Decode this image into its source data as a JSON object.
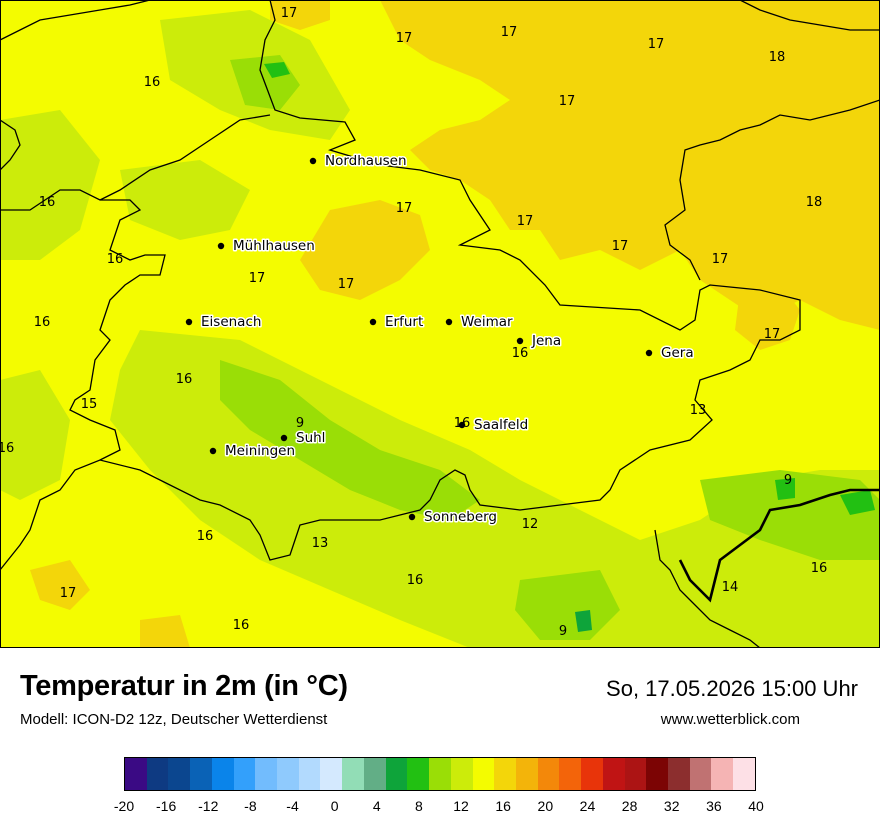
{
  "map": {
    "cities": [
      {
        "name": "Nordhausen"
      },
      {
        "name": "Mühlhausen"
      },
      {
        "name": "Eisenach"
      },
      {
        "name": "Erfurt"
      },
      {
        "name": "Weimar"
      },
      {
        "name": "Jena"
      },
      {
        "name": "Gera"
      },
      {
        "name": "Suhl"
      },
      {
        "name": "Meiningen"
      },
      {
        "name": "Saalfeld"
      },
      {
        "name": "Sonneberg"
      }
    ],
    "temperature_labels": [
      "17",
      "17",
      "17",
      "17",
      "18",
      "16",
      "17",
      "17",
      "17",
      "16",
      "18",
      "16",
      "17",
      "17",
      "17",
      "17",
      "16",
      "17",
      "16",
      "16",
      "15",
      "9",
      "16",
      "13",
      "16",
      "9",
      "12",
      "13",
      "16",
      "17",
      "16",
      "14",
      "9",
      "16"
    ]
  },
  "footer": {
    "title": "Temperatur in 2m (in °C)",
    "model": "Modell: ICON-D2 12z, Deutscher Wetterdienst",
    "datetime": "So, 17.05.2026 15:00 Uhr",
    "website": "www.wetterblick.com"
  },
  "legend": {
    "min": -20,
    "max": 40,
    "tick_labels": [
      "-20",
      "-16",
      "-12",
      "-8",
      "-4",
      "0",
      "4",
      "8",
      "12",
      "16",
      "20",
      "24",
      "28",
      "32",
      "36",
      "40"
    ],
    "colors": [
      "#3a0a84",
      "#0e3a82",
      "#0b468f",
      "#0a62b6",
      "#0a84ea",
      "#33a0fb",
      "#72bcfd",
      "#8fcafd",
      "#b2dafe",
      "#d4e9fe",
      "#92ddb6",
      "#62ae86",
      "#0ea43a",
      "#22c012",
      "#9ade06",
      "#ccec0a",
      "#f4fc00",
      "#f3d60a",
      "#f3b40a",
      "#f3880a",
      "#f3640a",
      "#e8340a",
      "#c01414",
      "#ac1414",
      "#7c0404",
      "#8c2e2e",
      "#c07272",
      "#f5b4b4",
      "#fde0e6"
    ]
  }
}
